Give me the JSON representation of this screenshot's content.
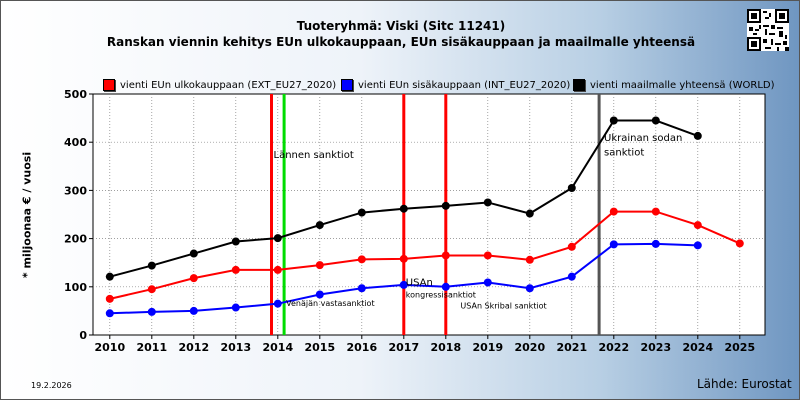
{
  "title_line1": "Tuoteryhmä: Viski (Sitc 11241)",
  "title_line2": "Ranskan viennin kehitys EUn ulkokauppaan, EUn sisäkauppaan ja maailmalle yhteensä",
  "date": "19.2.2026",
  "source": "Lähde: Eurostat",
  "qr_icon": "qr-code-icon",
  "chart_data": {
    "type": "line",
    "ylabel": "* miljoonaa € / vuosi",
    "ylim": [
      0,
      500
    ],
    "yticks": [
      0,
      100,
      200,
      300,
      400,
      500
    ],
    "x": [
      2010,
      2011,
      2012,
      2013,
      2014,
      2015,
      2016,
      2017,
      2018,
      2019,
      2020,
      2021,
      2022,
      2023,
      2024,
      2025
    ],
    "grid": true,
    "legend_position": "top",
    "series": [
      {
        "name": "vienti EUn ulkokauppaan (EXT_EU27_2020)",
        "color": "#ff0000",
        "values": [
          75,
          95,
          118,
          135,
          135,
          145,
          157,
          158,
          165,
          165,
          156,
          183,
          256,
          256,
          228,
          190
        ]
      },
      {
        "name": "vienti EUn sisäkauppaan (INT_EU27_2020)",
        "color": "#0000ff",
        "values": [
          45,
          48,
          50,
          57,
          65,
          84,
          97,
          104,
          100,
          109,
          97,
          121,
          188,
          189,
          186,
          null
        ]
      },
      {
        "name": "vienti maailmalle yhteensä (WORLD)",
        "color": "#000000",
        "values": [
          121,
          144,
          169,
          194,
          201,
          228,
          254,
          262,
          268,
          275,
          252,
          305,
          445,
          445,
          413,
          null
        ]
      }
    ],
    "events": [
      {
        "x": 2013.85,
        "color": "#ff0000",
        "label": ""
      },
      {
        "x": 2014.15,
        "color": "#00dd00",
        "label": ""
      },
      {
        "x": 2017.0,
        "color": "#ff0000",
        "label": ""
      },
      {
        "x": 2018.0,
        "color": "#ff0000",
        "label": ""
      },
      {
        "x": 2021.65,
        "color": "#555555",
        "label": ""
      }
    ],
    "annotations": [
      {
        "x": 2013.85,
        "y": 367,
        "text": "Lännen sanktiot"
      },
      {
        "x": 2014.15,
        "y": 60,
        "text": "Venäjän vastasanktiot"
      },
      {
        "x": 2017.0,
        "y": 103,
        "text": "USAn"
      },
      {
        "x": 2017.0,
        "y": 78,
        "text": "kongressisanktiot"
      },
      {
        "x": 2018.3,
        "y": 55,
        "text": "USAn Skribal sanktiot"
      },
      {
        "x": 2021.72,
        "y": 402,
        "text": "Ukrainan sodan"
      },
      {
        "x": 2021.72,
        "y": 372,
        "text": "sanktiot"
      }
    ]
  }
}
